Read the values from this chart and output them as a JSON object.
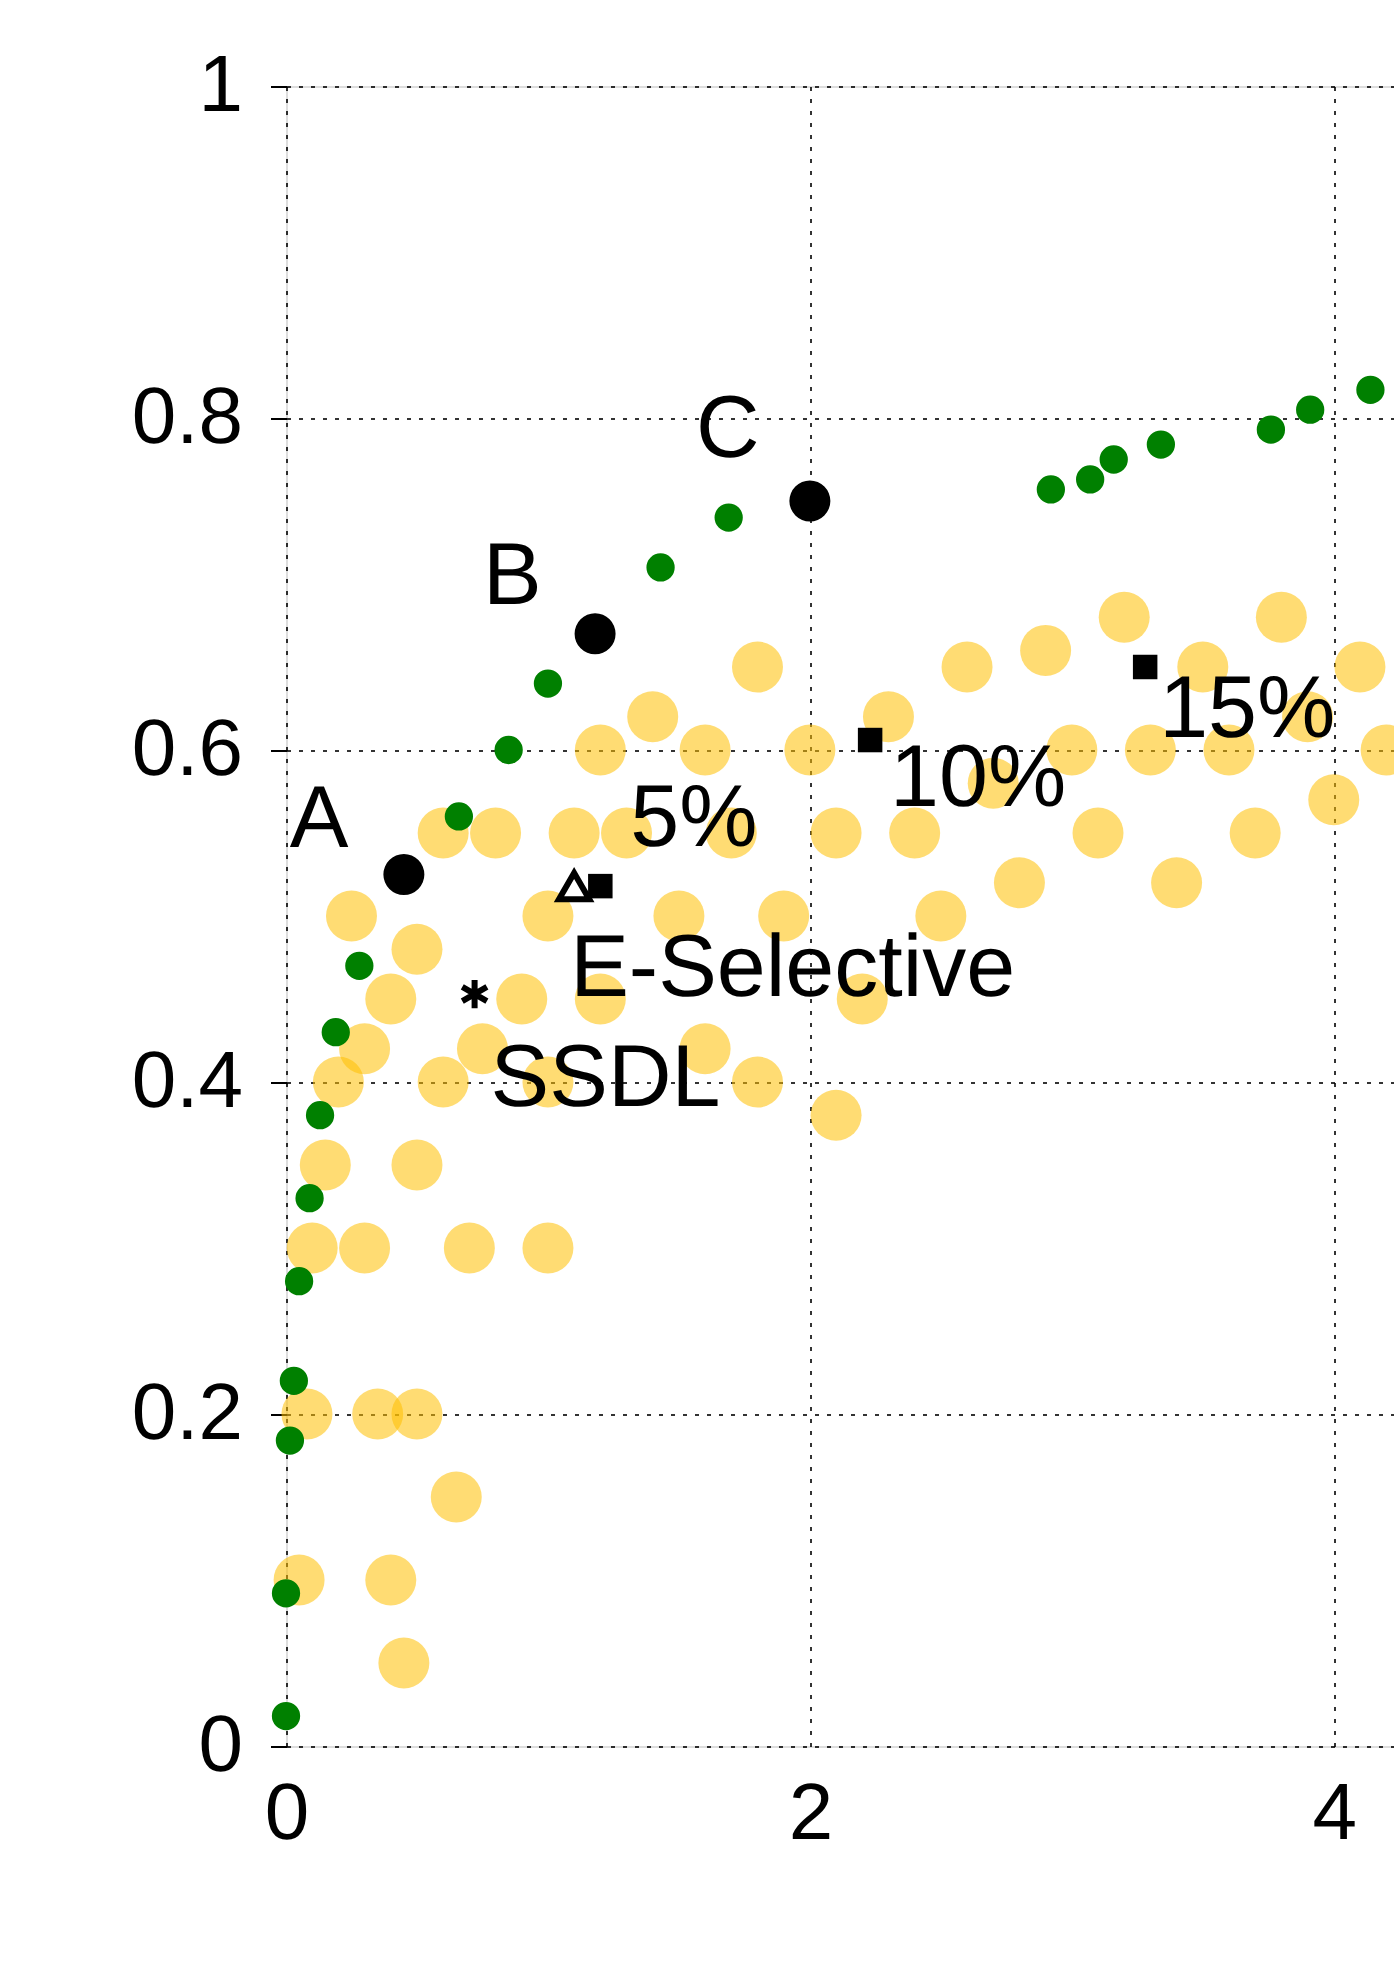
{
  "chart_data": {
    "type": "scatter",
    "xlim": [
      0,
      4.23
    ],
    "ylim": [
      0,
      1
    ],
    "xticks": [
      0,
      2,
      4
    ],
    "yticks": [
      0,
      0.2,
      0.4,
      0.6,
      0.8,
      1
    ],
    "grid": true,
    "series": [
      {
        "color": "#ffc000",
        "marker": "circle",
        "x": [
          0.05,
          0.08,
          0.1,
          0.15,
          0.2,
          0.3,
          0.35,
          0.4,
          0.45,
          0.3,
          0.4,
          0.5,
          0.5,
          0.6,
          0.7,
          0.75,
          0.9,
          1.0,
          1.0,
          1.1,
          1.2,
          1.3,
          1.4,
          1.5,
          1.6,
          1.7,
          1.8,
          1.9,
          2.0,
          2.1,
          2.2,
          2.3,
          2.4,
          2.5,
          2.6,
          2.7,
          2.8,
          2.9,
          3.0,
          3.1,
          3.2,
          3.3,
          3.4,
          3.5,
          3.6,
          3.7,
          3.8,
          3.9,
          4.0,
          4.1,
          4.2,
          0.25,
          0.6,
          0.8,
          1.0,
          1.2,
          1.6,
          1.8,
          2.1,
          0.5,
          0.65
        ],
        "values": [
          0.1,
          0.2,
          0.3,
          0.35,
          0.4,
          0.3,
          0.2,
          0.1,
          0.05,
          0.42,
          0.45,
          0.48,
          0.35,
          0.4,
          0.3,
          0.42,
          0.45,
          0.5,
          0.4,
          0.55,
          0.6,
          0.55,
          0.62,
          0.5,
          0.6,
          0.55,
          0.65,
          0.5,
          0.6,
          0.55,
          0.45,
          0.62,
          0.55,
          0.5,
          0.65,
          0.58,
          0.52,
          0.66,
          0.6,
          0.55,
          0.68,
          0.6,
          0.52,
          0.65,
          0.6,
          0.55,
          0.68,
          0.62,
          0.57,
          0.65,
          0.6,
          0.5,
          0.55,
          0.55,
          0.3,
          0.45,
          0.42,
          0.4,
          0.38,
          0.2,
          0.15
        ]
      },
      {
        "color": "#008000",
        "marker": "circle",
        "x": [
          0,
          0,
          0.015,
          0.03,
          0.05,
          0.09,
          0.13,
          0.19,
          0.28,
          0.66,
          0.85,
          1.0,
          1.43,
          1.69,
          2.92,
          3.07,
          3.16,
          3.34,
          3.76,
          3.91,
          4.14
        ],
        "values": [
          0.018,
          0.092,
          0.184,
          0.22,
          0.28,
          0.33,
          0.38,
          0.43,
          0.47,
          0.56,
          0.6,
          0.64,
          0.71,
          0.74,
          0.757,
          0.763,
          0.775,
          0.784,
          0.793,
          0.805,
          0.817
        ]
      },
      {
        "color": "#000000",
        "marker": "circle",
        "x": [
          0.45,
          1.18,
          2.0
        ],
        "values": [
          0.525,
          0.67,
          0.75
        ]
      },
      {
        "color": "#000000",
        "marker": "square",
        "x": [
          1.2,
          2.23,
          3.28
        ],
        "values": [
          0.518,
          0.606,
          0.65
        ]
      },
      {
        "color": "#000000",
        "marker": "triangle",
        "x": [
          1.1
        ],
        "values": [
          0.518
        ]
      },
      {
        "color": "#000000",
        "marker": "cross",
        "x": [
          0.72
        ],
        "values": [
          0.453
        ]
      }
    ],
    "annotations": [
      {
        "text": "A",
        "x": 0.45,
        "y": 0.525
      },
      {
        "text": "B",
        "x": 1.18,
        "y": 0.67
      },
      {
        "text": "C",
        "x": 2.0,
        "y": 0.75
      },
      {
        "text": "5%",
        "x": 1.2,
        "y": 0.518
      },
      {
        "text": "10%",
        "x": 2.23,
        "y": 0.606
      },
      {
        "text": "15%",
        "x": 3.28,
        "y": 0.65
      },
      {
        "text": "E-Selective",
        "x": 1.1,
        "y": 0.518
      },
      {
        "text": "SSDL",
        "x": 0.72,
        "y": 0.453
      }
    ]
  }
}
